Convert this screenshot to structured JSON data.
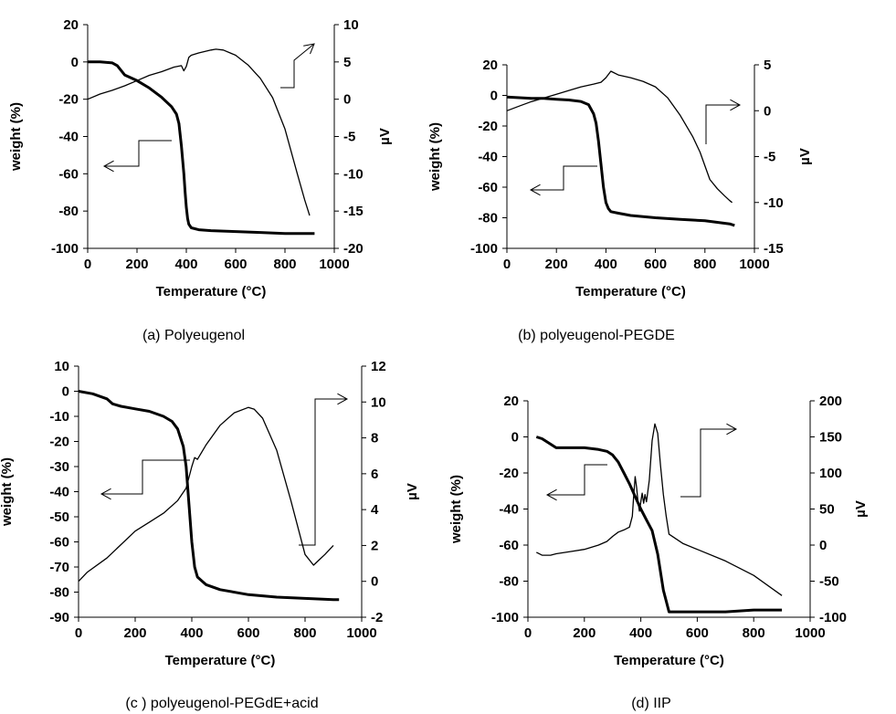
{
  "chart_data": [
    {
      "type": "line",
      "caption": "(a) Polyeugenol",
      "xlabel": "Temperature (°C)",
      "ylabel": "weight (%)",
      "y2label": "µV",
      "xlim": [
        0,
        1000
      ],
      "ylim": [
        -100,
        20
      ],
      "y2lim": [
        -20,
        10
      ],
      "xticks": [
        "0",
        "200",
        "400",
        "600",
        "800",
        "1000"
      ],
      "yticks": [
        "20",
        "0",
        "-20",
        "-40",
        "-60",
        "-80",
        "-100"
      ],
      "y2ticks": [
        "10",
        "5",
        "0",
        "-5",
        "-10",
        "-15",
        "-20"
      ],
      "grid": false,
      "series": [
        {
          "axis": "left",
          "style": "thick",
          "x": [
            0,
            50,
            100,
            120,
            150,
            200,
            250,
            300,
            340,
            360,
            370,
            380,
            390,
            395,
            400,
            405,
            410,
            420,
            450,
            500,
            600,
            700,
            800,
            900,
            920
          ],
          "y": [
            0,
            0,
            -0.5,
            -2,
            -7,
            -10,
            -14,
            -19,
            -24,
            -28,
            -33,
            -45,
            -60,
            -70,
            -78,
            -84,
            -87,
            -89,
            -90,
            -90.5,
            -91,
            -91.5,
            -92,
            -92,
            -92
          ]
        },
        {
          "axis": "right",
          "style": "thin",
          "x": [
            0,
            50,
            100,
            150,
            200,
            250,
            300,
            350,
            380,
            390,
            400,
            410,
            420,
            450,
            500,
            520,
            550,
            600,
            650,
            700,
            750,
            800,
            850,
            880,
            900
          ],
          "y": [
            0,
            0.7,
            1.2,
            1.8,
            2.5,
            3.2,
            3.7,
            4.3,
            4.5,
            3.8,
            4.4,
            5.6,
            5.9,
            6.2,
            6.6,
            6.7,
            6.6,
            5.9,
            4.6,
            2.8,
            0.2,
            -4,
            -10,
            -13.5,
            -15.6
          ]
        }
      ],
      "annotations": [
        {
          "type": "arrow",
          "direction": "left",
          "series": "weight"
        },
        {
          "type": "arrow",
          "direction": "right",
          "series": "dta"
        }
      ]
    },
    {
      "type": "line",
      "caption": "(b) polyeugenol-PEGDE",
      "xlabel": "Temperature (°C)",
      "ylabel": "weight (%)",
      "y2label": "µV",
      "xlim": [
        0,
        1000
      ],
      "ylim": [
        -100,
        20
      ],
      "y2lim": [
        -15,
        5
      ],
      "xticks": [
        "0",
        "200",
        "400",
        "600",
        "800",
        "1000"
      ],
      "yticks": [
        "20",
        "0",
        "-20",
        "-40",
        "-60",
        "-80",
        "-100"
      ],
      "y2ticks": [
        "5",
        "0",
        "-5",
        "-10",
        "-15"
      ],
      "grid": false,
      "series": [
        {
          "axis": "left",
          "style": "thick",
          "x": [
            0,
            50,
            100,
            150,
            200,
            250,
            300,
            330,
            350,
            360,
            370,
            380,
            390,
            400,
            410,
            420,
            450,
            500,
            600,
            700,
            800,
            850,
            900,
            920
          ],
          "y": [
            -1,
            -1.5,
            -2,
            -2,
            -2.5,
            -3,
            -4,
            -6,
            -12,
            -18,
            -30,
            -45,
            -60,
            -70,
            -74,
            -76,
            -77,
            -78.5,
            -80,
            -81,
            -82,
            -83,
            -84,
            -85
          ]
        },
        {
          "axis": "right",
          "style": "thin",
          "x": [
            0,
            50,
            100,
            150,
            200,
            250,
            300,
            350,
            380,
            400,
            420,
            450,
            500,
            550,
            600,
            650,
            700,
            750,
            780,
            800,
            820,
            850,
            880,
            900,
            910
          ],
          "y": [
            0,
            0.5,
            1,
            1.4,
            1.8,
            2.2,
            2.6,
            2.9,
            3.1,
            3.6,
            4.3,
            3.9,
            3.6,
            3.2,
            2.6,
            1.4,
            -0.5,
            -2.8,
            -4.5,
            -6,
            -7.5,
            -8.5,
            -9.3,
            -9.8,
            -10
          ]
        }
      ],
      "annotations": [
        {
          "type": "arrow",
          "direction": "left",
          "series": "weight"
        },
        {
          "type": "arrow",
          "direction": "right",
          "series": "dta"
        }
      ]
    },
    {
      "type": "line",
      "caption": "(c ) polyeugenol-PEGdE+acid",
      "xlabel": "Temperature (°C)",
      "ylabel": "weight (%)",
      "y2label": "µV",
      "xlim": [
        0,
        1000
      ],
      "ylim": [
        -90,
        10
      ],
      "y2lim": [
        -2,
        12
      ],
      "xticks": [
        "0",
        "200",
        "400",
        "600",
        "800",
        "1000"
      ],
      "yticks": [
        "10",
        "0",
        "-10",
        "-20",
        "-30",
        "-40",
        "-50",
        "-60",
        "-70",
        "-80",
        "-90"
      ],
      "y2ticks": [
        "12",
        "10",
        "8",
        "6",
        "4",
        "2",
        "0",
        "-2"
      ],
      "grid": false,
      "series": [
        {
          "axis": "left",
          "style": "thick",
          "x": [
            0,
            50,
            100,
            120,
            150,
            200,
            250,
            300,
            330,
            350,
            370,
            380,
            390,
            400,
            410,
            420,
            450,
            500,
            600,
            700,
            800,
            900,
            920
          ],
          "y": [
            0,
            -1,
            -3,
            -5,
            -6,
            -7,
            -8,
            -10,
            -12,
            -15,
            -22,
            -30,
            -45,
            -60,
            -70,
            -74,
            -77,
            -79,
            -81,
            -82,
            -82.5,
            -83,
            -83
          ]
        },
        {
          "axis": "right",
          "style": "thin",
          "x": [
            0,
            30,
            100,
            200,
            250,
            300,
            350,
            380,
            400,
            410,
            420,
            450,
            500,
            550,
            600,
            620,
            650,
            700,
            750,
            800,
            830,
            850,
            870,
            900
          ],
          "y": [
            0,
            0.5,
            1.3,
            2.8,
            3.3,
            3.8,
            4.5,
            5.2,
            6.4,
            6.9,
            6.8,
            7.6,
            8.7,
            9.4,
            9.7,
            9.6,
            9.1,
            7.3,
            4.5,
            1.5,
            0.9,
            1.2,
            1.5,
            2
          ]
        }
      ],
      "annotations": [
        {
          "type": "arrow",
          "direction": "left",
          "series": "weight"
        },
        {
          "type": "arrow",
          "direction": "right",
          "series": "dta"
        }
      ]
    },
    {
      "type": "line",
      "caption": "(d) IIP",
      "xlabel": "Temperature (°C)",
      "ylabel": "weight (%)",
      "y2label": "µV",
      "xlim": [
        0,
        1000
      ],
      "ylim": [
        -100,
        20
      ],
      "y2lim": [
        -100,
        200
      ],
      "xticks": [
        "0",
        "200",
        "400",
        "600",
        "800",
        "1000"
      ],
      "yticks": [
        "20",
        "0",
        "-20",
        "-40",
        "-60",
        "-80",
        "-100"
      ],
      "y2ticks": [
        "200",
        "150",
        "100",
        "50",
        "0",
        "-50",
        "-100"
      ],
      "grid": false,
      "series": [
        {
          "axis": "left",
          "style": "thick",
          "x": [
            30,
            50,
            80,
            100,
            150,
            200,
            250,
            280,
            300,
            320,
            340,
            360,
            380,
            400,
            420,
            440,
            460,
            480,
            500,
            600,
            700,
            800,
            900
          ],
          "y": [
            0,
            -1,
            -4,
            -6,
            -6,
            -6,
            -7,
            -8,
            -10,
            -14,
            -20,
            -26,
            -33,
            -40,
            -46,
            -52,
            -65,
            -85,
            -97,
            -97,
            -97,
            -96,
            -96
          ]
        },
        {
          "axis": "right",
          "style": "thin",
          "x": [
            30,
            50,
            80,
            100,
            150,
            200,
            250,
            280,
            300,
            320,
            340,
            360,
            370,
            375,
            380,
            385,
            390,
            395,
            400,
            405,
            410,
            415,
            420,
            430,
            440,
            450,
            460,
            470,
            480,
            490,
            500,
            550,
            600,
            700,
            800,
            900
          ],
          "y": [
            -10,
            -14,
            -14,
            -12,
            -9,
            -6,
            0,
            5,
            12,
            18,
            21,
            25,
            40,
            70,
            95,
            80,
            60,
            47,
            60,
            72,
            58,
            70,
            60,
            90,
            145,
            168,
            155,
            110,
            70,
            40,
            15,
            2,
            -6,
            -22,
            -42,
            -70
          ]
        }
      ],
      "annotations": [
        {
          "type": "arrow",
          "direction": "left",
          "series": "weight"
        },
        {
          "type": "arrow",
          "direction": "right",
          "series": "dta"
        }
      ]
    }
  ]
}
